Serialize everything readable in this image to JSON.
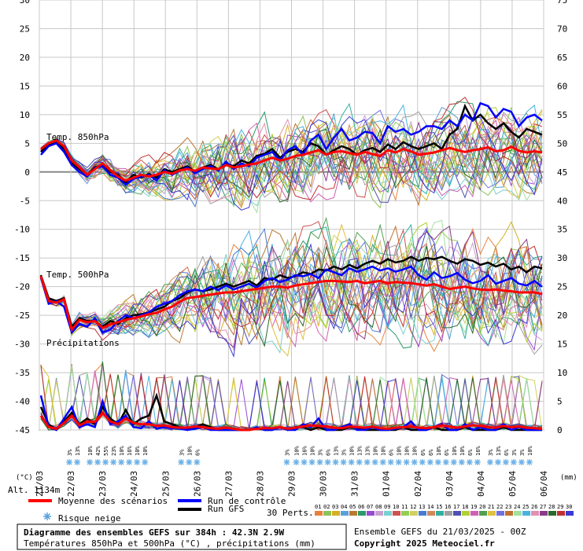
{
  "chart_data": {
    "type": "line",
    "title": "Diagramme des ensembles GEFS sur 384h : 42.3N 2.9W",
    "subtitle": "Températures 850hPa et 500hPa (°C) , précipitations (mm)",
    "left_unit": "(°C)",
    "right_unit": "(mm)",
    "altitude": "Alt. 1134m",
    "panel_labels": [
      "Temp. 850hPa",
      "Temp. 500hPa",
      "Précipitations"
    ],
    "y_left_ticks": [
      30,
      25,
      20,
      15,
      10,
      5,
      0,
      -5,
      -10,
      -15,
      -20,
      -25,
      -30,
      -35,
      -40,
      -45
    ],
    "y_right_ticks": [
      75,
      70,
      65,
      60,
      55,
      50,
      45,
      40,
      35,
      30,
      25,
      20,
      15,
      10,
      5,
      0
    ],
    "ylim": [
      -45,
      30
    ],
    "x_ticks": [
      "21/03",
      "22/03",
      "23/03",
      "24/03",
      "25/03",
      "26/03",
      "27/03",
      "28/03",
      "29/03",
      "30/03",
      "31/03",
      "01/04",
      "02/04",
      "03/04",
      "04/04",
      "05/04",
      "06/04"
    ],
    "legend": {
      "mean": "Moyenne des scénarios",
      "control": "Run de contrôle",
      "gfs": "Run GFS",
      "snow": "Risque neige",
      "perts_label": "30 Perts.",
      "perts": [
        "01",
        "02",
        "03",
        "04",
        "05",
        "06",
        "07",
        "08",
        "09",
        "10",
        "11",
        "12",
        "13",
        "14",
        "15",
        "16",
        "17",
        "18",
        "19",
        "20",
        "21",
        "22",
        "23",
        "24",
        "25",
        "26",
        "27",
        "28",
        "29",
        "30"
      ],
      "pert_colors": [
        "#e8823a",
        "#8ec25a",
        "#d4b020",
        "#5aa0d8",
        "#b87a30",
        "#2a9a6a",
        "#9a4ad0",
        "#c8a0d0",
        "#7ad0d0",
        "#d05050",
        "#90d050",
        "#d0d060",
        "#4a7ad0",
        "#d08a5a",
        "#30b0a0",
        "#a0a0a0",
        "#5050b0",
        "#b0d030",
        "#d060b0",
        "#50a050",
        "#e0c040",
        "#7070e0",
        "#c07030",
        "#a0e0a0",
        "#4ab0e0",
        "#e090b0",
        "#8a3a8a",
        "#2a6a2a",
        "#c03030",
        "#3a3ad0"
      ],
      "mean_color": "#ff0000",
      "control_color": "#0000ff",
      "gfs_color": "#000000"
    },
    "snow_risk": [
      {
        "day_offset": 0.95,
        "pcts": [
          "3%",
          "13%"
        ]
      },
      {
        "day_offset": 1.6,
        "pcts": [
          "10%",
          "42%",
          "55%",
          "23%",
          "10%",
          "16%",
          "10%",
          "10%"
        ]
      },
      {
        "day_offset": 4.5,
        "pcts": [
          "3%",
          "10%",
          "6%"
        ]
      },
      {
        "day_offset": 7.85,
        "pcts": [
          "3%"
        ]
      },
      {
        "day_offset": 8.15,
        "pcts": [
          "10%",
          "16%",
          "10%",
          "3%",
          "6%",
          "13%",
          "3%",
          "10%",
          "13%",
          "13%",
          "10%",
          "10%",
          "6%",
          "10%",
          "10%",
          "10%",
          "6%",
          "6%",
          "10%",
          "6%",
          "10%",
          "10%",
          "6%",
          "16%"
        ]
      },
      {
        "day_offset": 14.3,
        "pcts": [
          "3%",
          "13%",
          "6%",
          "3%",
          "3%",
          "10%"
        ]
      }
    ],
    "series": [
      {
        "name": "Moyenne des scénarios",
        "t850": [
          4.0,
          5.0,
          5.5,
          4.5,
          2.0,
          0.8,
          -0.5,
          0.5,
          1.5,
          0.3,
          -0.8,
          -1.5,
          -1.0,
          -0.5,
          -0.8,
          -0.5,
          0.0,
          -0.3,
          0.3,
          0.5,
          0.2,
          0.8,
          0.6,
          0.5,
          1.2,
          0.8,
          1.0,
          1.3,
          1.5,
          2.0,
          2.5,
          2.0,
          2.3,
          2.8,
          3.0,
          3.4,
          3.8,
          3.0,
          3.5,
          3.6,
          3.3,
          3.0,
          3.5,
          3.1,
          2.8,
          3.8,
          3.4,
          4.0,
          3.6,
          3.0,
          3.2,
          3.4,
          3.8,
          4.2,
          3.8,
          3.5,
          3.8,
          4.0,
          4.3,
          3.6,
          3.8,
          4.4,
          3.7,
          3.4,
          3.6,
          3.4
        ],
        "t500": [
          -18.2,
          -22.5,
          -22.8,
          -22.2,
          -27.5,
          -25.8,
          -26.2,
          -26.0,
          -27.2,
          -26.6,
          -26.2,
          -25.8,
          -25.5,
          -25.2,
          -24.8,
          -24.6,
          -24.0,
          -23.5,
          -22.6,
          -22.0,
          -21.8,
          -21.6,
          -21.4,
          -21.2,
          -21.0,
          -21.0,
          -20.8,
          -20.6,
          -20.4,
          -20.2,
          -20.0,
          -20.0,
          -20.2,
          -19.8,
          -19.6,
          -19.4,
          -19.2,
          -19.0,
          -19.0,
          -19.1,
          -19.2,
          -19.0,
          -19.4,
          -19.2,
          -19.0,
          -19.4,
          -19.2,
          -19.3,
          -19.4,
          -19.6,
          -19.8,
          -19.6,
          -20.0,
          -20.4,
          -20.2,
          -20.0,
          -20.3,
          -20.5,
          -20.6,
          -20.5,
          -20.7,
          -20.8,
          -21.0,
          -21.0,
          -21.0,
          -21.3
        ],
        "precip": [
          2.5,
          0.5,
          0.2,
          1.2,
          2.5,
          0.8,
          1.5,
          1.4,
          3.0,
          1.5,
          1.0,
          2.0,
          1.2,
          1.0,
          1.0,
          0.7,
          0.8,
          0.5,
          0.4,
          0.4,
          0.6,
          0.5,
          0.3,
          0.2,
          0.4,
          0.2,
          0.0,
          0.0,
          0.2,
          0.3,
          0.3,
          0.5,
          0.2,
          0.4,
          0.6,
          0.8,
          0.7,
          0.6,
          0.4,
          0.3,
          0.6,
          0.5,
          0.4,
          0.6,
          0.3,
          0.2,
          0.4,
          0.5,
          0.6,
          0.4,
          0.3,
          0.5,
          0.8,
          0.6,
          0.4,
          0.6,
          0.8,
          0.7,
          0.5,
          0.4,
          0.7,
          0.5,
          0.6,
          0.4,
          0.3,
          0.2
        ]
      },
      {
        "name": "Run de contrôle",
        "t850": [
          3.0,
          4.5,
          5.0,
          3.5,
          1.2,
          0.0,
          -0.8,
          0.7,
          1.0,
          -0.5,
          -1.0,
          -2.2,
          -1.2,
          -0.8,
          -0.5,
          -1.5,
          0.3,
          -0.5,
          0.2,
          0.8,
          -0.2,
          0.5,
          1.0,
          0.2,
          1.8,
          0.5,
          1.5,
          1.0,
          2.5,
          3.0,
          3.5,
          2.0,
          3.8,
          4.5,
          3.0,
          5.5,
          6.5,
          4.0,
          6.0,
          7.5,
          5.5,
          6.0,
          7.0,
          6.8,
          5.0,
          8.0,
          7.0,
          7.5,
          6.5,
          7.0,
          8.0,
          8.0,
          7.5,
          9.0,
          8.0,
          10.0,
          9.0,
          12.0,
          11.5,
          9.5,
          11.0,
          10.5,
          8.0,
          9.5,
          10.0,
          9.0
        ],
        "t500": [
          -18.5,
          -23.0,
          -22.5,
          -23.5,
          -28.0,
          -26.5,
          -27.0,
          -25.5,
          -28.0,
          -27.5,
          -26.0,
          -25.0,
          -25.5,
          -25.0,
          -24.5,
          -23.5,
          -23.0,
          -22.5,
          -21.5,
          -20.8,
          -20.5,
          -20.8,
          -20.0,
          -20.6,
          -19.8,
          -20.5,
          -20.0,
          -19.5,
          -20.2,
          -19.0,
          -18.5,
          -19.2,
          -18.8,
          -18.0,
          -18.2,
          -17.8,
          -18.5,
          -17.0,
          -17.5,
          -18.0,
          -16.8,
          -17.4,
          -17.0,
          -16.5,
          -17.2,
          -16.8,
          -17.4,
          -17.0,
          -16.5,
          -18.0,
          -18.8,
          -17.5,
          -18.5,
          -18.2,
          -17.6,
          -18.8,
          -19.4,
          -19.0,
          -18.0,
          -19.5,
          -19.0,
          -18.5,
          -19.5,
          -19.8,
          -19.0,
          -20.0
        ],
        "precip": [
          6.0,
          0.5,
          0.0,
          2.0,
          4.0,
          0.5,
          1.0,
          0.5,
          5.0,
          1.0,
          1.5,
          2.5,
          0.5,
          0.3,
          1.5,
          0.2,
          0.5,
          0.3,
          0.2,
          0.0,
          0.2,
          0.5,
          0.0,
          0.0,
          0.0,
          0.0,
          0.0,
          0.0,
          0.5,
          0.0,
          0.0,
          0.5,
          0.0,
          0.0,
          1.0,
          0.5,
          2.0,
          0.0,
          0.0,
          0.5,
          1.0,
          0.0,
          0.0,
          0.5,
          0.0,
          0.0,
          0.2,
          0.5,
          1.5,
          0.0,
          0.0,
          0.5,
          1.0,
          0.0,
          0.0,
          1.0,
          0.0,
          0.5,
          0.0,
          0.0,
          1.0,
          0.0,
          0.5,
          0.0,
          0.0,
          0.0
        ]
      },
      {
        "name": "Run GFS",
        "t850": [
          3.5,
          4.8,
          5.2,
          4.0,
          1.5,
          0.5,
          -0.5,
          0.8,
          1.2,
          0.0,
          -0.5,
          -1.8,
          -0.5,
          -1.0,
          -0.3,
          -1.0,
          0.5,
          0.0,
          0.5,
          1.0,
          0.0,
          0.8,
          1.2,
          0.5,
          1.5,
          1.0,
          2.0,
          1.5,
          2.8,
          3.2,
          4.0,
          2.5,
          3.5,
          4.0,
          3.5,
          5.0,
          4.5,
          3.0,
          3.8,
          4.5,
          4.0,
          3.0,
          3.8,
          4.2,
          3.5,
          4.8,
          4.0,
          5.2,
          4.5,
          4.0,
          4.5,
          5.0,
          4.0,
          6.5,
          7.5,
          11.5,
          9.0,
          10.0,
          8.5,
          7.5,
          8.5,
          7.0,
          6.0,
          7.5,
          7.0,
          6.5
        ],
        "t500": [
          -18.0,
          -22.0,
          -22.5,
          -22.0,
          -27.0,
          -25.5,
          -26.0,
          -26.0,
          -27.0,
          -26.0,
          -26.5,
          -25.5,
          -25.0,
          -24.8,
          -24.5,
          -24.0,
          -23.5,
          -22.5,
          -22.0,
          -21.0,
          -20.5,
          -20.8,
          -20.5,
          -20.0,
          -19.5,
          -20.0,
          -19.5,
          -19.0,
          -19.8,
          -18.5,
          -18.8,
          -18.0,
          -18.5,
          -18.2,
          -17.5,
          -17.8,
          -17.0,
          -17.2,
          -16.5,
          -17.0,
          -16.2,
          -16.8,
          -16.0,
          -15.5,
          -16.0,
          -15.2,
          -15.8,
          -15.5,
          -14.8,
          -15.5,
          -15.0,
          -15.2,
          -14.8,
          -15.5,
          -16.0,
          -15.2,
          -15.5,
          -16.2,
          -15.8,
          -16.5,
          -16.0,
          -17.0,
          -16.5,
          -17.5,
          -16.5,
          -16.8
        ],
        "precip": [
          4.0,
          1.0,
          0.0,
          1.5,
          3.0,
          1.0,
          2.0,
          1.0,
          4.0,
          2.0,
          1.0,
          3.5,
          1.0,
          2.0,
          2.5,
          6.0,
          1.5,
          1.0,
          0.5,
          0.0,
          0.5,
          1.0,
          0.5,
          0.0,
          0.0,
          0.0,
          0.0,
          0.0,
          0.3,
          0.0,
          0.0,
          0.5,
          0.0,
          0.5,
          0.5,
          0.0,
          0.5,
          0.0,
          0.0,
          0.0,
          0.5,
          0.3,
          0.0,
          0.0,
          0.0,
          0.0,
          0.0,
          0.5,
          0.0,
          0.0,
          0.0,
          0.5,
          0.0,
          0.0,
          0.0,
          0.5,
          0.0,
          0.0,
          0.0,
          0.0,
          0.5,
          0.0,
          0.0,
          0.0,
          0.0,
          0.0
        ]
      }
    ]
  }
}
